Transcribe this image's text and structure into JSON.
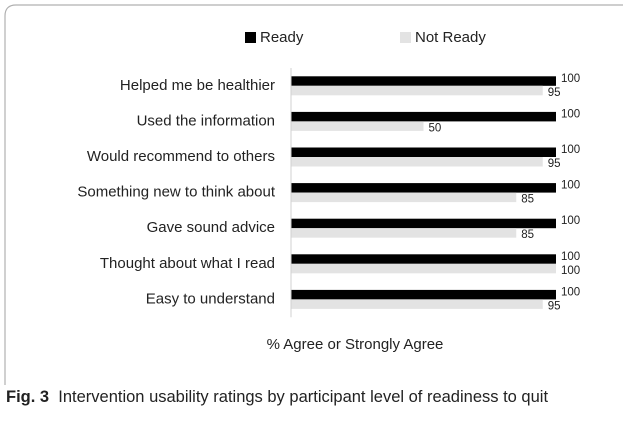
{
  "chart_data": {
    "type": "bar",
    "orientation": "horizontal",
    "categories": [
      "Helped me be healthier",
      "Used the information",
      "Would recommend to others",
      "Something new to think about",
      "Gave sound advice",
      "Thought about what I read",
      "Easy to understand"
    ],
    "series": [
      {
        "name": "Ready",
        "color": "#000000",
        "values": [
          100,
          100,
          100,
          100,
          100,
          100,
          100
        ]
      },
      {
        "name": "Not Ready",
        "color": "#e3e3e3",
        "values": [
          95,
          50,
          95,
          85,
          85,
          100,
          95
        ]
      }
    ],
    "xlim": [
      0,
      100
    ],
    "xlabel": "% Agree or Strongly Agree",
    "legend": "top",
    "figure_label": "Fig. 3",
    "caption": "Intervention usability ratings by participant level of readiness to quit"
  }
}
